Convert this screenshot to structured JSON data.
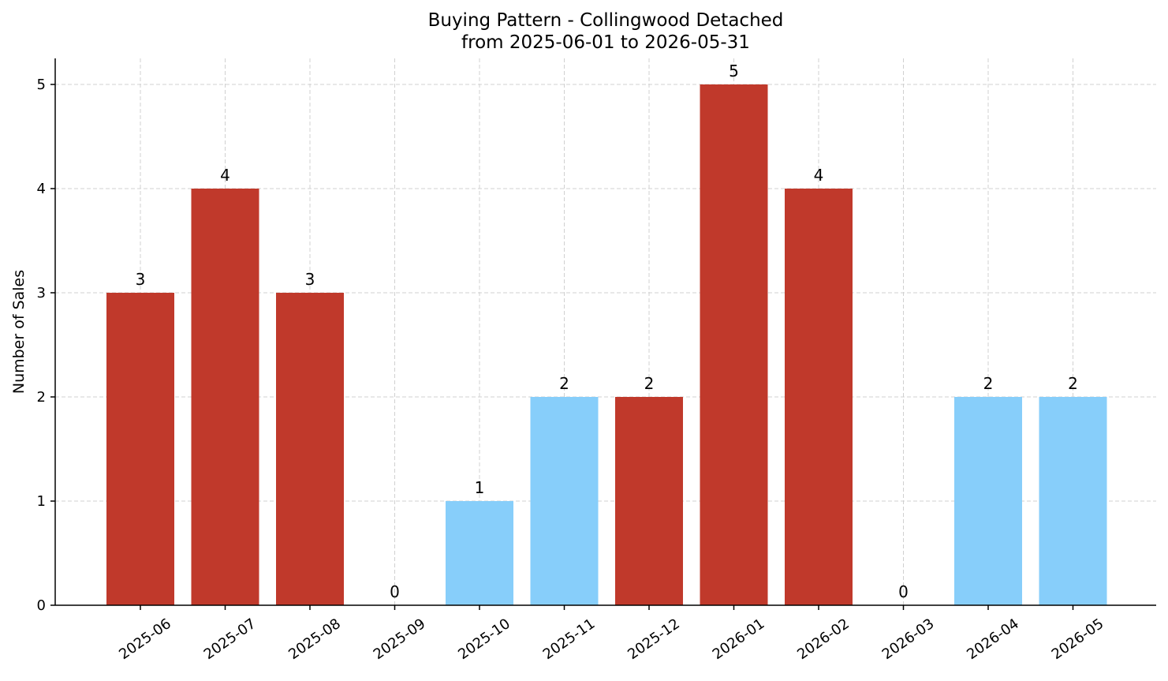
{
  "chart_data": {
    "type": "bar",
    "title": "Buying Pattern - Collingwood Detached",
    "subtitle": "from 2025-06-01 to 2026-05-31",
    "xlabel": "",
    "ylabel": "Number of Sales",
    "categories": [
      "2025-06",
      "2025-07",
      "2025-08",
      "2025-09",
      "2025-10",
      "2025-11",
      "2025-12",
      "2026-01",
      "2026-02",
      "2026-03",
      "2026-04",
      "2026-05"
    ],
    "values": [
      3,
      4,
      3,
      0,
      1,
      2,
      2,
      5,
      4,
      0,
      2,
      2
    ],
    "bar_colors": [
      "#c0392b",
      "#c0392b",
      "#c0392b",
      "#c0392b",
      "#87cefa",
      "#87cefa",
      "#c0392b",
      "#c0392b",
      "#c0392b",
      "#87cefa",
      "#87cefa",
      "#87cefa"
    ],
    "ylim": [
      0,
      5.25
    ],
    "yticks": [
      0,
      1,
      2,
      3,
      4,
      5
    ],
    "grid": true,
    "data_labels": true
  }
}
